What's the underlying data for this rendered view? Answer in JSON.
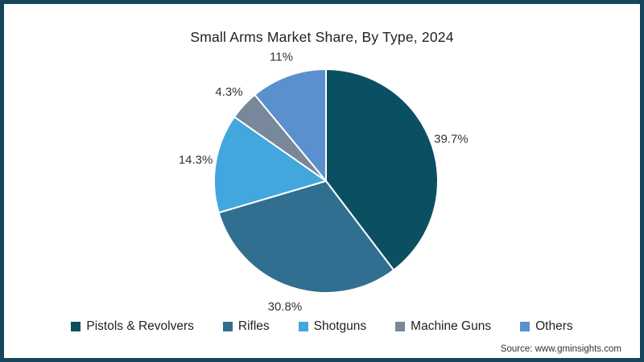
{
  "page": {
    "border_color": "#15465c",
    "background": "#ffffff"
  },
  "chart": {
    "title": "Small Arms Market Share, By Type, 2024",
    "source": "Source: www.gminsights.com"
  },
  "chart_data": {
    "type": "pie",
    "title": "Small Arms Market Share, By Type, 2024",
    "categories": [
      "Pistols & Revolvers",
      "Rifles",
      "Shotguns",
      "Machine Guns",
      "Others"
    ],
    "values": [
      39.7,
      30.8,
      14.3,
      4.3,
      11
    ],
    "labels": [
      "39.7%",
      "30.8%",
      "14.3%",
      "4.3%",
      "11%"
    ],
    "colors": [
      "#0b4f63",
      "#316f90",
      "#41a7dc",
      "#78879a",
      "#5b90cf"
    ],
    "start_angle_deg": 0,
    "direction": "clockwise",
    "slice_separator_color": "#ffffff",
    "legend_position": "bottom",
    "label_color": "#333333",
    "source": "Source: www.gminsights.com"
  }
}
